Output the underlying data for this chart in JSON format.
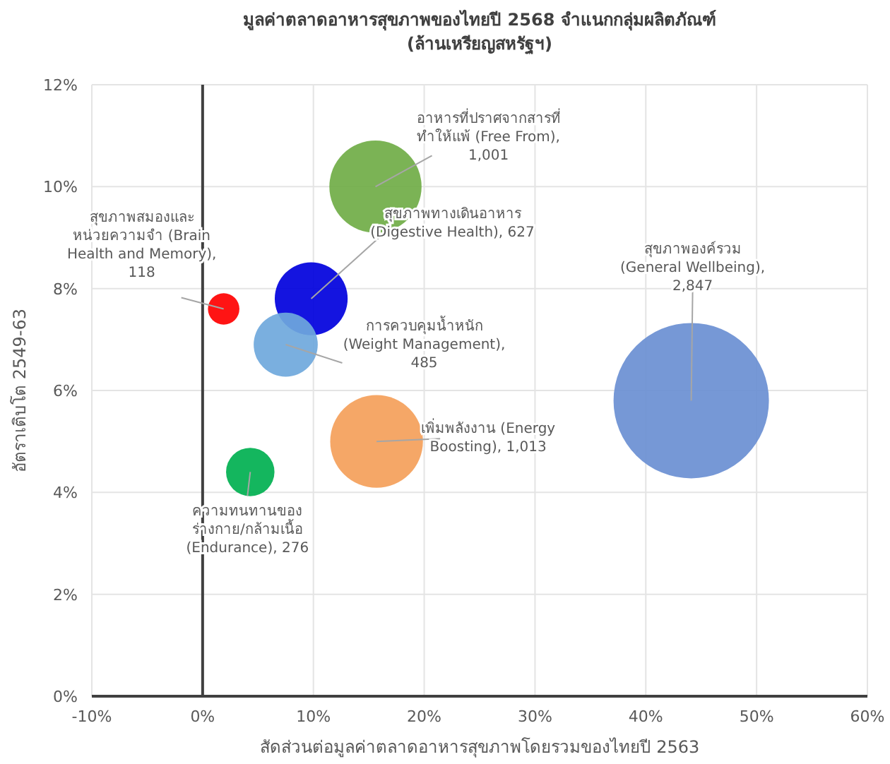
{
  "chart_data": {
    "type": "bubble",
    "title": "มูลค่าตลาดอาหารสุขภาพของไทยปี 2568 จำแนกกลุ่มผลิตภัณฑ์",
    "subtitle": "(ล้านเหรียญสหรัฐฯ)",
    "xlabel": "สัดส่วนต่อมูลค่าตลาดอาหารสุขภาพโดยรวมของไทยปี 2563",
    "ylabel": "อัตราเติบโต 2549-63",
    "x": [
      15.6,
      1.9,
      9.8,
      7.5,
      15.7,
      4.3,
      44.1
    ],
    "values": [
      10.0,
      7.6,
      7.8,
      6.9,
      5.0,
      4.4,
      5.8
    ],
    "sizes": [
      0.352,
      0.041,
      0.22,
      0.17,
      0.356,
      0.097,
      1
    ],
    "colors": [
      "#70ad47",
      "#ff0000",
      "#0000dd",
      "#6fa8dc",
      "#f4a05a",
      "#00b050",
      "#6a8fd3"
    ],
    "annotations": [
      {
        "text": "อาหารที่ปราศจากสารที่\nทำให้แพ้ (Free From),\n1,001",
        "x": 15.6,
        "y": 10.0
      },
      {
        "text": "สุขภาพสมองและ\nหน่วยความจำ (Brain\nHealth and Memory),\n118",
        "x": 1.9,
        "y": 7.6
      },
      {
        "text": "สุขภาพทางเดินอาหาร\n(Digestive Health), 627",
        "x": 9.8,
        "y": 7.8
      },
      {
        "text": "การควบคุมน้ำหนัก\n(Weight Management),\n485",
        "x": 7.5,
        "y": 6.9
      },
      {
        "text": "เพิ่มพลังงาน (Energy\nBoosting), 1,013",
        "x": 15.7,
        "y": 5.0
      },
      {
        "text": "ความทนทานของ\nร่างกาย/กล้ามเนื้อ\n(Endurance), 276",
        "x": 4.3,
        "y": 4.4
      },
      {
        "text": "สุขภาพองค์รวม\n(General Wellbeing),\n2,847",
        "x": 44.1,
        "y": 5.8
      }
    ],
    "xlim": [
      -10,
      60
    ],
    "xticks": [
      {
        "value": -10,
        "label": "-10%"
      },
      {
        "value": 0,
        "label": "0%"
      },
      {
        "value": 10,
        "label": "10%"
      },
      {
        "value": 20,
        "label": "20%"
      },
      {
        "value": 30,
        "label": "30%"
      },
      {
        "value": 40,
        "label": "40%"
      },
      {
        "value": 50,
        "label": "50%"
      },
      {
        "value": 60,
        "label": "60%"
      }
    ],
    "ylim": [
      0,
      12
    ],
    "yticks": [
      {
        "value": 0,
        "label": "0%"
      },
      {
        "value": 2,
        "label": "2%"
      },
      {
        "value": 4,
        "label": "4%"
      },
      {
        "value": 6,
        "label": "6%"
      },
      {
        "value": 8,
        "label": "8%"
      },
      {
        "value": 10,
        "label": "10%"
      },
      {
        "value": 12,
        "label": "12%"
      }
    ],
    "grid": true
  }
}
